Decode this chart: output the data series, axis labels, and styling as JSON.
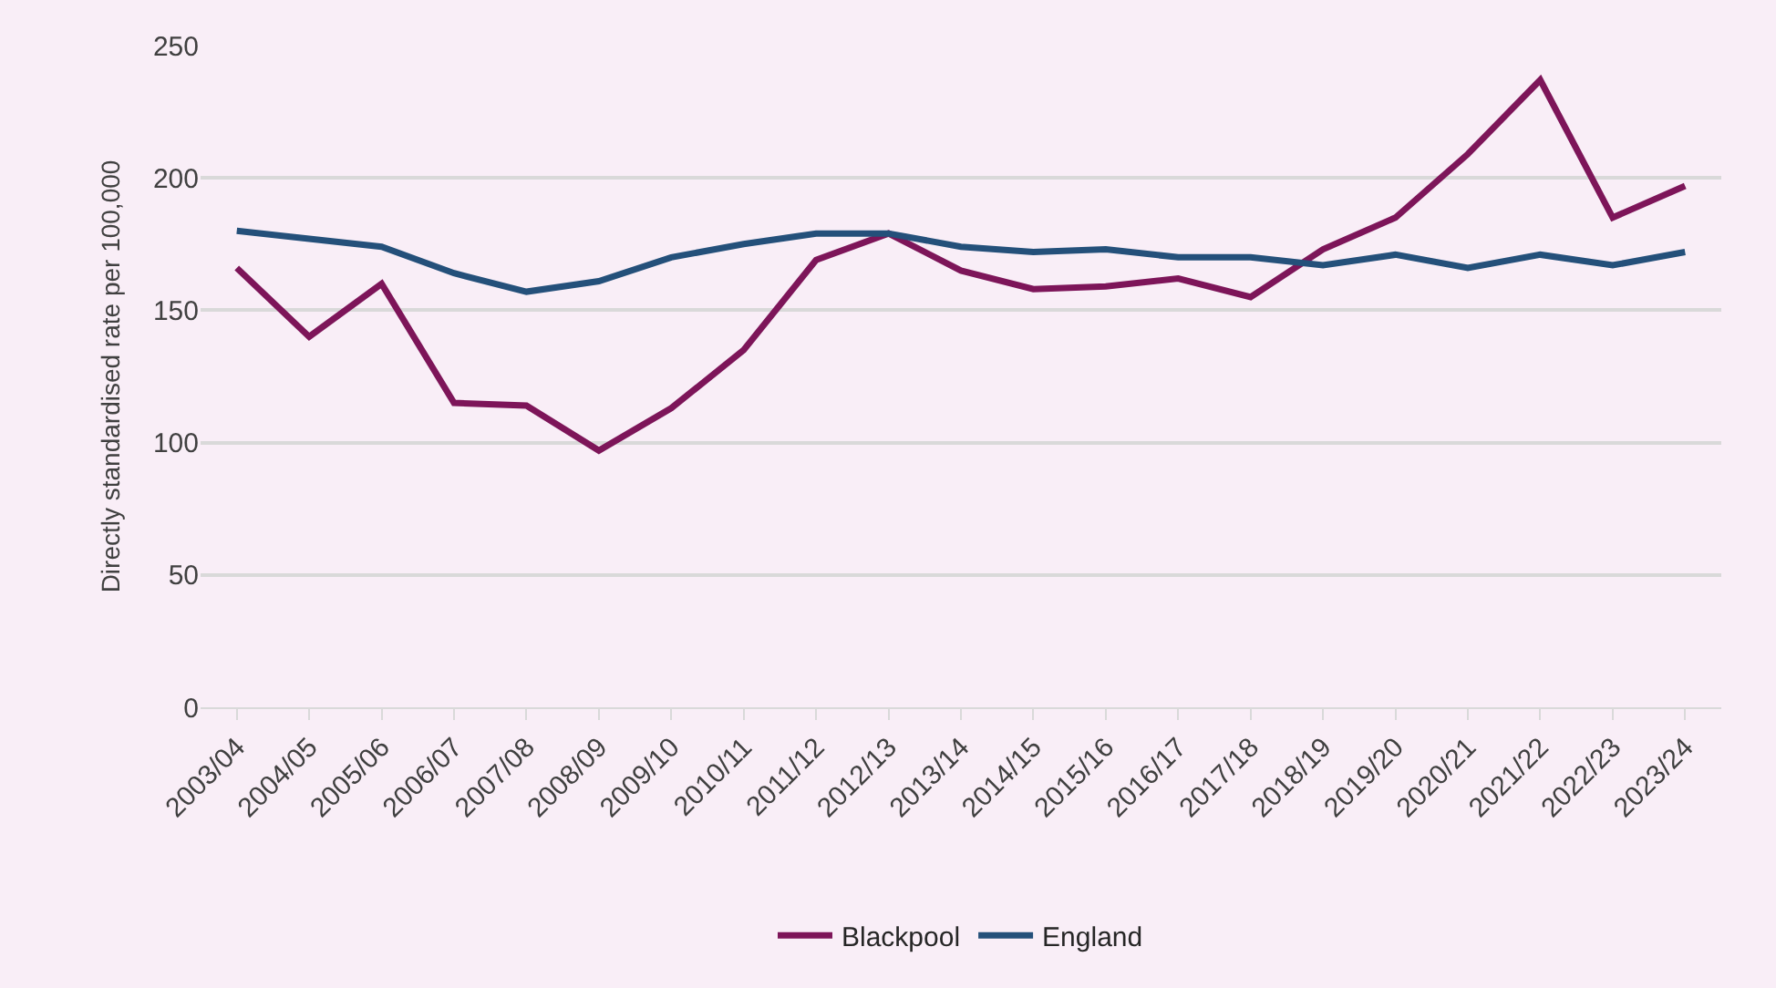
{
  "chart_data": {
    "type": "line",
    "ylabel": "Directly standardised rate per 100,000",
    "categories": [
      "2003/04",
      "2004/05",
      "2005/06",
      "2006/07",
      "2007/08",
      "2008/09",
      "2009/10",
      "2010/11",
      "2011/12",
      "2012/13",
      "2013/14",
      "2014/15",
      "2015/16",
      "2016/17",
      "2017/18",
      "2018/19",
      "2019/20",
      "2020/21",
      "2021/22",
      "2022/23",
      "2023/24"
    ],
    "series": [
      {
        "name": "Blackpool",
        "color": "#7d1559",
        "values": [
          166,
          140,
          160,
          115,
          114,
          97,
          113,
          135,
          169,
          179,
          165,
          158,
          159,
          162,
          155,
          173,
          185,
          209,
          237,
          185,
          197
        ]
      },
      {
        "name": "England",
        "color": "#24507a",
        "values": [
          180,
          177,
          174,
          164,
          157,
          161,
          170,
          175,
          179,
          179,
          174,
          172,
          173,
          170,
          170,
          167,
          171,
          166,
          171,
          167,
          172
        ]
      }
    ],
    "ylim": [
      0,
      250
    ],
    "yticks": [
      0,
      50,
      100,
      150,
      200,
      250
    ],
    "grid": "y",
    "legend": "bottom",
    "marker": "none",
    "line_style": "solid"
  }
}
